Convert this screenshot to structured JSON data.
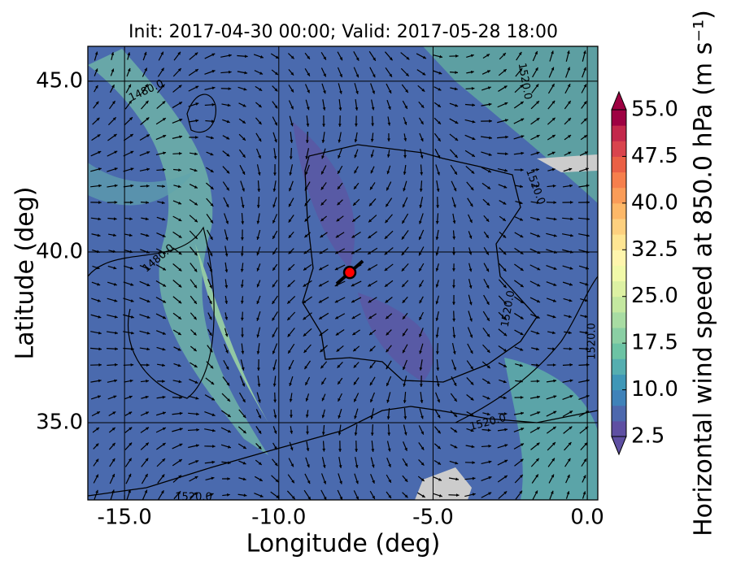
{
  "chart_data": {
    "type": "map",
    "title": "Init: 2017-04-30 00:00; Valid: 2017-05-28 18:00",
    "x_label": "Longitude (deg)",
    "y_label": "Latitude (deg)",
    "xlim": [
      -16.19,
      0.34
    ],
    "ylim": [
      32.74,
      46.02
    ],
    "xticks": [
      {
        "value": -15,
        "label": "-15.0"
      },
      {
        "value": -10,
        "label": "-10.0"
      },
      {
        "value": -5,
        "label": "-5.0"
      },
      {
        "value": 0,
        "label": "0.0"
      }
    ],
    "yticks": [
      {
        "value": 35,
        "label": "35.0"
      },
      {
        "value": 40,
        "label": "40.0"
      },
      {
        "value": 45,
        "label": "45.0"
      }
    ],
    "grid": true,
    "marker": {
      "lon": -7.7,
      "lat": 39.4,
      "color": "#ff0000"
    },
    "contour_labels": [
      "1480.0",
      "1480.0",
      "1520.0",
      "1520.0",
      "1520.0",
      "1520.0",
      "1520.0",
      "1520.0"
    ],
    "colorbar": {
      "label": "Horizontal wind speed at 850.0 hPa (m s⁻¹)",
      "lim": [
        2.5,
        55
      ],
      "ticks": [
        2.5,
        {
          "value": 10,
          "label": "10.0"
        },
        17.5,
        {
          "value": 25,
          "label": "25.0"
        },
        32.5,
        {
          "value": 40,
          "label": "40.0"
        },
        47.5,
        {
          "value": 55,
          "label": "55.0"
        }
      ],
      "colors": [
        "#5e4fa2",
        "#4d68ad",
        "#3f82b9",
        "#3f97b7",
        "#55aeb0",
        "#6cc3a4",
        "#8acfa4",
        "#a8dca3",
        "#c4e8a0",
        "#ddf1a3",
        "#f1f9a9",
        "#fef5ad",
        "#fee593",
        "#fdd07f",
        "#fdb868",
        "#fa9c58",
        "#f67f4c",
        "#ea6045",
        "#d9444d",
        "#c3284b",
        "#9e0142"
      ]
    }
  }
}
